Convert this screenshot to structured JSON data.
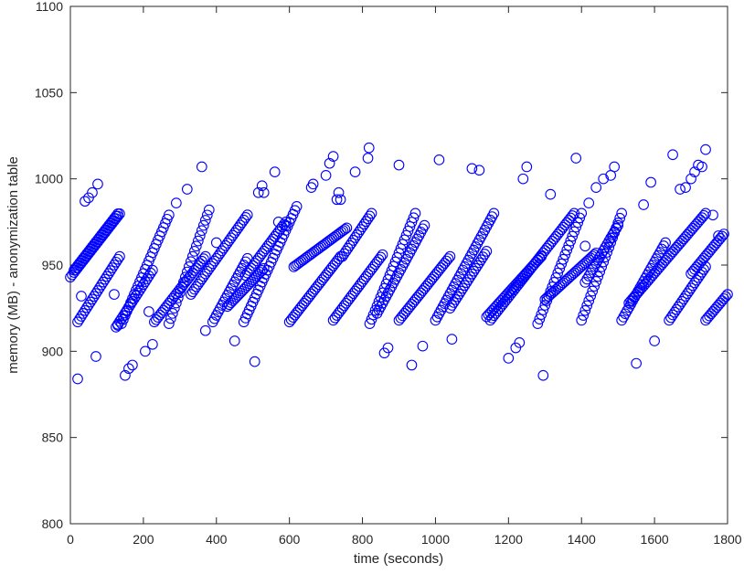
{
  "chart_data": {
    "type": "scatter",
    "title": "",
    "xlabel": "time (seconds)",
    "ylabel": "memory (MB) - anonymization table",
    "xlim": [
      0,
      1800
    ],
    "ylim": [
      800,
      1100
    ],
    "xticks": [
      "0",
      "200",
      "400",
      "600",
      "800",
      "1000",
      "1200",
      "1400",
      "1600",
      "1800"
    ],
    "yticks": [
      "800",
      "850",
      "900",
      "950",
      "1000",
      "1050",
      "1100"
    ],
    "grid": false,
    "marker": "open-circle",
    "marker_color": "#0000ff",
    "ramps": [
      [
        0,
        943,
        136,
        980
      ],
      [
        10,
        947,
        131,
        980
      ],
      [
        20,
        917,
        135,
        955
      ],
      [
        125,
        914,
        225,
        947
      ],
      [
        140,
        916,
        272,
        980
      ],
      [
        230,
        917,
        370,
        955
      ],
      [
        270,
        916,
        380,
        982
      ],
      [
        330,
        933,
        488,
        980
      ],
      [
        390,
        917,
        488,
        955
      ],
      [
        430,
        926,
        530,
        948
      ],
      [
        475,
        917,
        620,
        984
      ],
      [
        480,
        944,
        590,
        975
      ],
      [
        600,
        917,
        740,
        955
      ],
      [
        612,
        949,
        760,
        972
      ],
      [
        720,
        918,
        855,
        956
      ],
      [
        745,
        955,
        825,
        980
      ],
      [
        820,
        916,
        945,
        980
      ],
      [
        840,
        922,
        970,
        973
      ],
      [
        900,
        918,
        1040,
        955
      ],
      [
        1000,
        918,
        1160,
        980
      ],
      [
        1040,
        925,
        1140,
        958
      ],
      [
        1140,
        920,
        1290,
        955
      ],
      [
        1150,
        918,
        1380,
        980
      ],
      [
        1280,
        916,
        1400,
        980
      ],
      [
        1300,
        930,
        1440,
        957
      ],
      [
        1400,
        918,
        1510,
        980
      ],
      [
        1410,
        940,
        1500,
        973
      ],
      [
        1510,
        918,
        1630,
        963
      ],
      [
        1530,
        928,
        1740,
        980
      ],
      [
        1640,
        918,
        1740,
        949
      ],
      [
        1700,
        945,
        1790,
        968
      ],
      [
        1740,
        918,
        1800,
        933
      ]
    ],
    "outliers": [
      [
        20,
        884
      ],
      [
        30,
        932
      ],
      [
        40,
        987
      ],
      [
        50,
        989
      ],
      [
        60,
        992
      ],
      [
        70,
        897
      ],
      [
        75,
        997
      ],
      [
        120,
        933
      ],
      [
        130,
        915
      ],
      [
        150,
        886
      ],
      [
        160,
        890
      ],
      [
        170,
        892
      ],
      [
        205,
        900
      ],
      [
        215,
        923
      ],
      [
        225,
        904
      ],
      [
        290,
        986
      ],
      [
        320,
        994
      ],
      [
        360,
        1007
      ],
      [
        370,
        912
      ],
      [
        400,
        963
      ],
      [
        450,
        906
      ],
      [
        505,
        894
      ],
      [
        515,
        992
      ],
      [
        525,
        996
      ],
      [
        530,
        992
      ],
      [
        560,
        1004
      ],
      [
        570,
        975
      ],
      [
        590,
        973
      ],
      [
        660,
        995
      ],
      [
        665,
        997
      ],
      [
        700,
        1002
      ],
      [
        710,
        1009
      ],
      [
        720,
        1013
      ],
      [
        730,
        988
      ],
      [
        735,
        992
      ],
      [
        740,
        988
      ],
      [
        780,
        1004
      ],
      [
        815,
        1012
      ],
      [
        818,
        1018
      ],
      [
        860,
        899
      ],
      [
        870,
        902
      ],
      [
        900,
        1008
      ],
      [
        935,
        892
      ],
      [
        965,
        903
      ],
      [
        1010,
        1011
      ],
      [
        1045,
        907
      ],
      [
        1100,
        1006
      ],
      [
        1120,
        1005
      ],
      [
        1200,
        896
      ],
      [
        1220,
        902
      ],
      [
        1230,
        905
      ],
      [
        1240,
        1000
      ],
      [
        1250,
        1007
      ],
      [
        1295,
        886
      ],
      [
        1315,
        991
      ],
      [
        1385,
        1012
      ],
      [
        1410,
        961
      ],
      [
        1420,
        986
      ],
      [
        1440,
        995
      ],
      [
        1460,
        1000
      ],
      [
        1480,
        1002
      ],
      [
        1490,
        1007
      ],
      [
        1550,
        893
      ],
      [
        1570,
        985
      ],
      [
        1590,
        998
      ],
      [
        1600,
        906
      ],
      [
        1650,
        1014
      ],
      [
        1670,
        994
      ],
      [
        1685,
        995
      ],
      [
        1700,
        1000
      ],
      [
        1710,
        1004
      ],
      [
        1720,
        1008
      ],
      [
        1730,
        1007
      ],
      [
        1740,
        1017
      ],
      [
        1760,
        979
      ],
      [
        1775,
        967
      ]
    ]
  }
}
